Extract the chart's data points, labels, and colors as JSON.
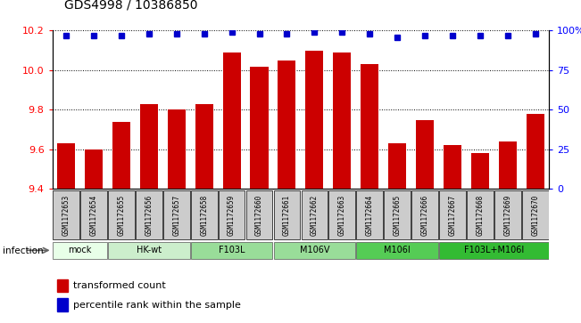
{
  "title": "GDS4998 / 10386850",
  "samples": [
    "GSM1172653",
    "GSM1172654",
    "GSM1172655",
    "GSM1172656",
    "GSM1172657",
    "GSM1172658",
    "GSM1172659",
    "GSM1172660",
    "GSM1172661",
    "GSM1172662",
    "GSM1172663",
    "GSM1172664",
    "GSM1172665",
    "GSM1172666",
    "GSM1172667",
    "GSM1172668",
    "GSM1172669",
    "GSM1172670"
  ],
  "red_values": [
    9.63,
    9.6,
    9.74,
    9.83,
    9.8,
    9.83,
    10.09,
    10.02,
    10.05,
    10.1,
    10.09,
    10.03,
    9.63,
    9.75,
    9.62,
    9.58,
    9.64,
    9.78
  ],
  "blue_values": [
    97,
    97,
    97,
    98,
    98,
    98,
    99,
    98,
    98,
    99,
    99,
    98,
    96,
    97,
    97,
    97,
    97,
    98
  ],
  "ylim_left": [
    9.4,
    10.2
  ],
  "ylim_right": [
    0,
    100
  ],
  "yticks_left": [
    9.4,
    9.6,
    9.8,
    10.0,
    10.2
  ],
  "yticks_right": [
    0,
    25,
    50,
    75,
    100
  ],
  "ytick_right_labels": [
    "0",
    "25",
    "50",
    "75",
    "100%"
  ],
  "groups": [
    {
      "label": "mock",
      "start": 0,
      "end": 2,
      "color": "#e8ffe8"
    },
    {
      "label": "HK-wt",
      "start": 2,
      "end": 5,
      "color": "#cceecc"
    },
    {
      "label": "F103L",
      "start": 5,
      "end": 8,
      "color": "#99dd99"
    },
    {
      "label": "M106V",
      "start": 8,
      "end": 11,
      "color": "#99dd99"
    },
    {
      "label": "M106I",
      "start": 11,
      "end": 14,
      "color": "#55cc55"
    },
    {
      "label": "F103L+M106I",
      "start": 14,
      "end": 18,
      "color": "#33bb33"
    }
  ],
  "bar_color": "#cc0000",
  "dot_color": "#0000cc",
  "sample_box_color": "#cccccc",
  "label_infection": "infection",
  "legend_red": "transformed count",
  "legend_blue": "percentile rank within the sample"
}
